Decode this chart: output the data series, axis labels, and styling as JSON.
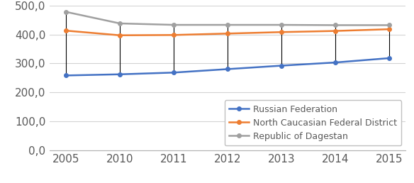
{
  "years": [
    2005,
    2010,
    2011,
    2012,
    2013,
    2014,
    2015
  ],
  "russian_federation": [
    258,
    262,
    268,
    280,
    292,
    303,
    318
  ],
  "north_caucasian": [
    413,
    397,
    398,
    403,
    408,
    412,
    418
  ],
  "republic_dagestan": [
    478,
    438,
    433,
    433,
    433,
    432,
    432
  ],
  "color_russia": "#4472C4",
  "color_north": "#ED7D31",
  "color_dagestan": "#A0A0A0",
  "legend_russia": "Russian Federation",
  "legend_north": "North Caucasian Federal District",
  "legend_dagestan": "Republic of Dagestan",
  "ylim_min": 0,
  "ylim_max": 500,
  "yticks": [
    0,
    100,
    200,
    300,
    400,
    500
  ],
  "ytick_labels": [
    "0,0",
    "100,0",
    "200,0",
    "300,0",
    "400,0",
    "500,0"
  ],
  "background_color": "#ffffff",
  "grid_color": "#d3d3d3",
  "marker": "o",
  "marker_size": 4,
  "linewidth": 1.8,
  "font_size_ticks": 11,
  "font_size_legend": 9
}
